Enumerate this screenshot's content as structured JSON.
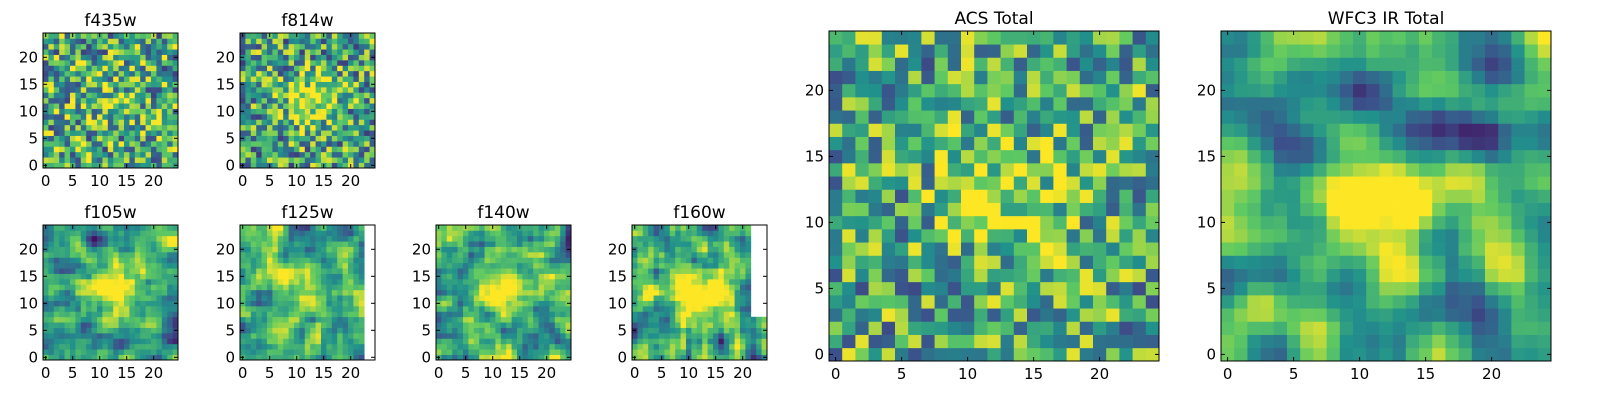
{
  "figure": {
    "colormap_stops": [
      "#440154",
      "#3b528b",
      "#21918c",
      "#5ec962",
      "#fde725"
    ]
  },
  "chart_data": [
    {
      "type": "heatmap",
      "title": "f435w",
      "grid_size": 25,
      "xticks": [
        0,
        5,
        10,
        15,
        20
      ],
      "yticks": [
        0,
        5,
        10,
        15,
        20
      ],
      "seed": 11,
      "smooth": 0,
      "bump": 0.15,
      "noise": 0.85,
      "bias": 0.62,
      "blank_right_cols": 0,
      "blank_cols_from_row": 0
    },
    {
      "type": "heatmap",
      "title": "f814w",
      "grid_size": 25,
      "xticks": [
        0,
        5,
        10,
        15,
        20
      ],
      "yticks": [
        0,
        5,
        10,
        15,
        20
      ],
      "seed": 23,
      "smooth": 0,
      "bump": 0.45,
      "noise": 0.8,
      "bias": 0.58,
      "blank_right_cols": 0,
      "blank_cols_from_row": 0
    },
    {
      "type": "heatmap",
      "title": "f105w",
      "grid_size": 25,
      "xticks": [
        0,
        5,
        10,
        15,
        20
      ],
      "yticks": [
        0,
        5,
        10,
        15,
        20
      ],
      "seed": 37,
      "smooth": 1,
      "bump": 0.55,
      "noise": 1.0,
      "bias": 0.55,
      "blank_right_cols": 0,
      "blank_cols_from_row": 0
    },
    {
      "type": "heatmap",
      "title": "f125w",
      "grid_size": 25,
      "xticks": [
        0,
        5,
        10,
        15,
        20
      ],
      "yticks": [
        0,
        5,
        10,
        15,
        20
      ],
      "seed": 41,
      "smooth": 1,
      "bump": 0.3,
      "noise": 1.0,
      "bias": 0.6,
      "blank_right_cols": 2,
      "blank_cols_from_row": 0
    },
    {
      "type": "heatmap",
      "title": "f140w",
      "grid_size": 25,
      "xticks": [
        0,
        5,
        10,
        15,
        20
      ],
      "yticks": [
        0,
        5,
        10,
        15,
        20
      ],
      "seed": 53,
      "smooth": 1,
      "bump": 0.4,
      "noise": 1.0,
      "bias": 0.6,
      "blank_right_cols": 0,
      "blank_cols_from_row": 0
    },
    {
      "type": "heatmap",
      "title": "f160w",
      "grid_size": 25,
      "xticks": [
        0,
        5,
        10,
        15,
        20
      ],
      "yticks": [
        0,
        5,
        10,
        15,
        20
      ],
      "seed": 67,
      "smooth": 1,
      "bump": 0.55,
      "noise": 1.0,
      "bias": 0.58,
      "blank_right_cols": 3,
      "blank_cols_from_row": 8
    },
    {
      "type": "heatmap",
      "title": "ACS Total",
      "grid_size": 25,
      "xticks": [
        0,
        5,
        10,
        15,
        20
      ],
      "yticks": [
        0,
        5,
        10,
        15,
        20
      ],
      "seed": 79,
      "smooth": 0,
      "bump": 0.35,
      "noise": 0.75,
      "bias": 0.6,
      "blank_right_cols": 0,
      "blank_cols_from_row": 0
    },
    {
      "type": "heatmap",
      "title": "WFC3 IR Total",
      "grid_size": 25,
      "xticks": [
        0,
        5,
        10,
        15,
        20
      ],
      "yticks": [
        0,
        5,
        10,
        15,
        20
      ],
      "seed": 97,
      "smooth": 2,
      "bump": 0.55,
      "noise": 1.0,
      "bias": 0.55,
      "blank_right_cols": 0,
      "blank_cols_from_row": 0
    }
  ]
}
